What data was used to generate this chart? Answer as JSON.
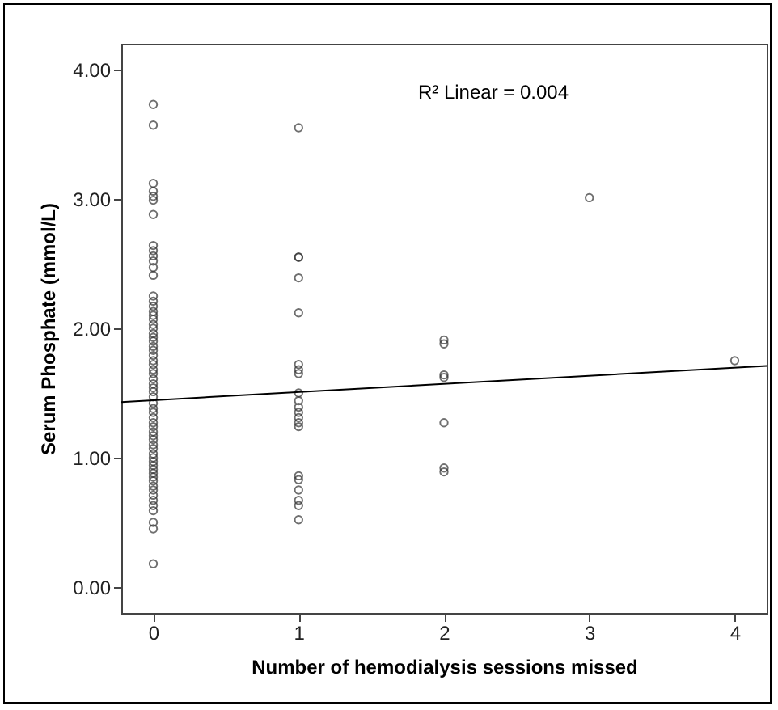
{
  "chart_data": {
    "type": "scatter",
    "xlabel": "Number of hemodialysis sessions missed",
    "ylabel": "Serum Phosphate (mmol/L)",
    "annotations": [
      "R² Linear = 0.004"
    ],
    "xlim": [
      -0.22,
      4.22
    ],
    "ylim": [
      -0.2,
      4.2
    ],
    "xticks": [
      0,
      1,
      2,
      3,
      4
    ],
    "yticks": [
      {
        "value": 0,
        "label": "0.00"
      },
      {
        "value": 1,
        "label": "1.00"
      },
      {
        "value": 2,
        "label": "2.00"
      },
      {
        "value": 3,
        "label": "3.00"
      },
      {
        "value": 4,
        "label": "4.00"
      }
    ],
    "grid": false,
    "marker": "circle",
    "series": [
      {
        "color": "#333333",
        "x": [
          0,
          0,
          0,
          0,
          0,
          0,
          0,
          0,
          0,
          0,
          0,
          0,
          0,
          0,
          0,
          0,
          0,
          0,
          0,
          0,
          0,
          0,
          0,
          0,
          0,
          0,
          0,
          0,
          0,
          0,
          0,
          0,
          0,
          0,
          0,
          0,
          0,
          0,
          0,
          0,
          0,
          0,
          0,
          0,
          0,
          0,
          0,
          0,
          0,
          0,
          0,
          0,
          0,
          0,
          0,
          0,
          0,
          0,
          0,
          0,
          0,
          0,
          0,
          0
        ],
        "values": [
          3.73,
          3.57,
          3.12,
          3.06,
          3.02,
          2.99,
          2.88,
          2.64,
          2.6,
          2.56,
          2.52,
          2.47,
          2.41,
          2.25,
          2.21,
          2.17,
          2.13,
          2.1,
          2.07,
          2.03,
          2,
          1.96,
          1.93,
          1.9,
          1.86,
          1.83,
          1.79,
          1.75,
          1.72,
          1.68,
          1.65,
          1.61,
          1.57,
          1.54,
          1.51,
          1.47,
          1.42,
          1.38,
          1.35,
          1.31,
          1.27,
          1.24,
          1.2,
          1.17,
          1.14,
          1.1,
          1.07,
          1.03,
          1,
          0.97,
          0.94,
          0.91,
          0.88,
          0.85,
          0.82,
          0.78,
          0.75,
          0.71,
          0.67,
          0.63,
          0.59,
          0.5,
          0.45,
          0.18
        ]
      },
      {
        "color": "#333333",
        "x": [
          1,
          1,
          1,
          1,
          1,
          1,
          1,
          1,
          1,
          1,
          1,
          1,
          1,
          1,
          1,
          1,
          1,
          1,
          1,
          1,
          1
        ],
        "values": [
          3.55,
          2.55,
          2.55,
          2.39,
          2.12,
          1.72,
          1.68,
          1.65,
          1.5,
          1.44,
          1.39,
          1.35,
          1.31,
          1.27,
          1.24,
          0.86,
          0.83,
          0.75,
          0.67,
          0.63,
          0.52
        ]
      },
      {
        "color": "#333333",
        "x": [
          2,
          2,
          2,
          2,
          2,
          2,
          2
        ],
        "values": [
          1.91,
          1.88,
          1.64,
          1.62,
          1.27,
          0.92,
          0.89
        ]
      },
      {
        "color": "#333333",
        "x": [
          3,
          4
        ],
        "values": [
          3.01,
          1.75
        ]
      },
      {
        "type": "line",
        "marker": "none",
        "color": "#000000",
        "x": [
          -0.22,
          4.22
        ],
        "values": [
          1.43,
          1.71
        ]
      }
    ]
  }
}
